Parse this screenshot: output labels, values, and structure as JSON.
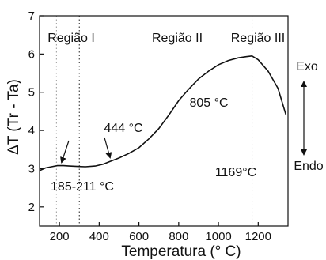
{
  "chart_data": {
    "type": "line",
    "title": "",
    "xlabel": "Temperatura (° C)",
    "ylabel": "ΔT (Tr - Ta)",
    "xlim": [
      100,
      1350
    ],
    "ylim": [
      1.5,
      7
    ],
    "x_ticks": [
      200,
      400,
      600,
      800,
      1000,
      1200
    ],
    "y_ticks": [
      2,
      3,
      4,
      5,
      6,
      7
    ],
    "grid": false,
    "series": [
      {
        "x": [
          100,
          130,
          160,
          190,
          220,
          250,
          290,
          330,
          380,
          420,
          450,
          500,
          550,
          600,
          650,
          700,
          750,
          800,
          850,
          900,
          950,
          1000,
          1050,
          1100,
          1140,
          1169,
          1200,
          1250,
          1300,
          1340
        ],
        "y": [
          2.95,
          3.02,
          3.05,
          3.08,
          3.08,
          3.07,
          3.06,
          3.05,
          3.07,
          3.12,
          3.18,
          3.28,
          3.4,
          3.55,
          3.78,
          4.05,
          4.4,
          4.78,
          5.08,
          5.35,
          5.55,
          5.72,
          5.83,
          5.9,
          5.93,
          5.95,
          5.85,
          5.55,
          5.1,
          4.4
        ]
      }
    ],
    "vlines": [
      185,
      300,
      1169
    ],
    "annotations": {
      "region1": "Região I",
      "region2": "Região II",
      "region3": "Região III",
      "t444": "444 °C",
      "t805": "805 °C",
      "t185": "185-211 °C",
      "t1169": "1169°C",
      "exo": "Exo",
      "endo": "Endo"
    }
  }
}
